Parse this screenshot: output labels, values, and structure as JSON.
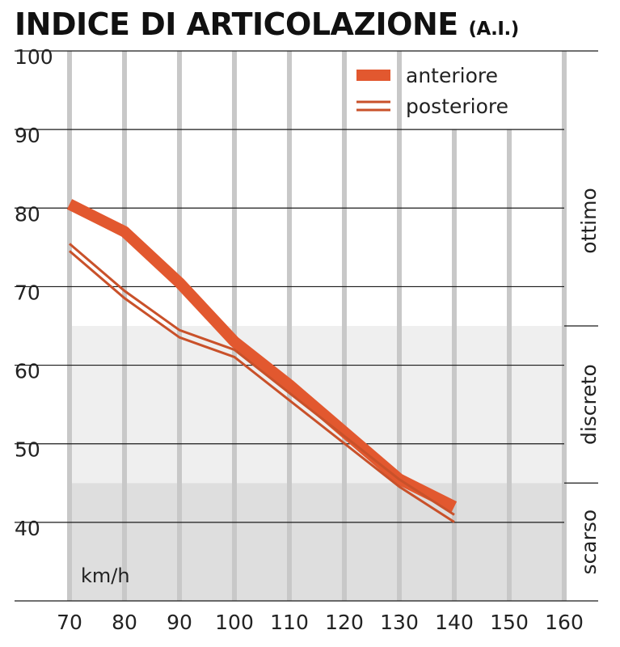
{
  "header": {
    "title": "INDICE DI ARTICOLAZIONE",
    "title_suffix": "(A.I.)"
  },
  "colors": {
    "anteriore": "#e2582f",
    "posteriore": "#c9512a",
    "grid": "#c8c8c8",
    "band_discreto": "#efefef",
    "band_scarso": "#dedede"
  },
  "chart_data": {
    "type": "line",
    "title": "INDICE DI ARTICOLAZIONE (A.I.)",
    "xlabel": "km/h",
    "ylabel": "",
    "x_ticks": [
      "70",
      "80",
      "90",
      "100",
      "110",
      "120",
      "130",
      "140",
      "150",
      "160"
    ],
    "y_ticks": [
      "40",
      "50",
      "60",
      "70",
      "80",
      "90",
      "100"
    ],
    "xlim": [
      70,
      160
    ],
    "ylim": [
      30,
      100
    ],
    "grid": true,
    "legend_position": "top-right",
    "bands": [
      {
        "label": "ottimo",
        "from": 65,
        "to": 100
      },
      {
        "label": "discreto",
        "from": 45,
        "to": 65
      },
      {
        "label": "scarso",
        "from": 30,
        "to": 45
      }
    ],
    "series": [
      {
        "name": "anteriore",
        "style": "thick",
        "x": [
          70,
          80,
          90,
          100,
          110,
          120,
          130,
          140
        ],
        "y": [
          80.5,
          77,
          70.5,
          63,
          57.5,
          51.5,
          45.5,
          42
        ]
      },
      {
        "name": "posteriore",
        "style": "double",
        "x": [
          70,
          80,
          90,
          100,
          110,
          120,
          130,
          140
        ],
        "y": [
          75,
          69,
          64,
          61.5,
          56,
          50.5,
          45,
          40.5
        ]
      }
    ]
  }
}
